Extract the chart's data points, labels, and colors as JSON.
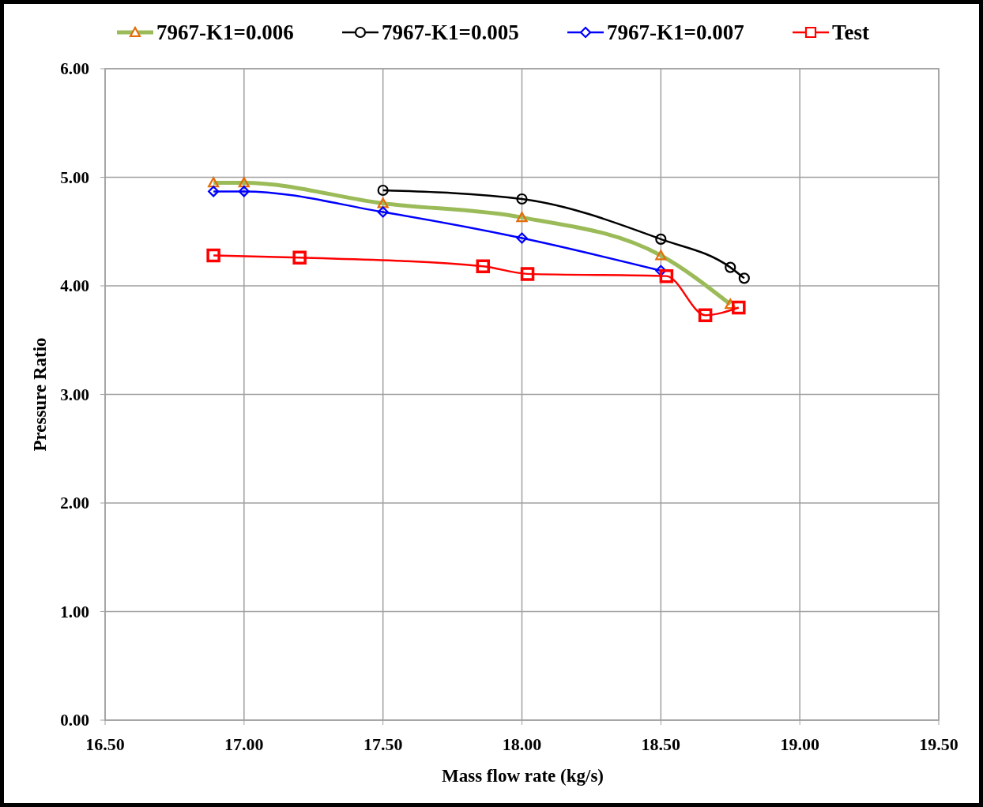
{
  "chart_data": {
    "type": "line",
    "xlabel": "Mass flow rate (kg/s)",
    "ylabel": "Pressure Ratio",
    "xlim": [
      16.5,
      19.5
    ],
    "xticks": [
      {
        "value": 16.5,
        "label": "16.50"
      },
      {
        "value": 17,
        "label": "17.00"
      },
      {
        "value": 17.5,
        "label": "17.50"
      },
      {
        "value": 18,
        "label": "18.00"
      },
      {
        "value": 18.5,
        "label": "18.50"
      },
      {
        "value": 19,
        "label": "19.00"
      },
      {
        "value": 19.5,
        "label": "19.50"
      }
    ],
    "ylim": [
      0,
      6
    ],
    "yticks": [
      {
        "value": 0,
        "label": "0.00"
      },
      {
        "value": 1,
        "label": "1.00"
      },
      {
        "value": 2,
        "label": "2.00"
      },
      {
        "value": 3,
        "label": "3.00"
      },
      {
        "value": 4,
        "label": "4.00"
      },
      {
        "value": 5,
        "label": "5.00"
      },
      {
        "value": 6,
        "label": "6.00"
      }
    ],
    "grid": true,
    "legend": "top",
    "series": [
      {
        "name": "7967-K1=0.006",
        "color": "#9bbb59",
        "marker": "triangle",
        "x": [
          16.89,
          17.0,
          17.5,
          18.0,
          18.5,
          18.75
        ],
        "values": [
          4.95,
          4.95,
          4.76,
          4.63,
          4.28,
          3.83
        ]
      },
      {
        "name": "7967-K1=0.005",
        "color": "#000000",
        "marker": "circle",
        "x": [
          17.5,
          18.0,
          18.5,
          18.75,
          18.8
        ],
        "values": [
          4.88,
          4.8,
          4.43,
          4.17,
          4.07
        ]
      },
      {
        "name": "7967-K1=0.007",
        "color": "#0000ff",
        "marker": "diamond",
        "x": [
          16.89,
          17.0,
          17.5,
          18.0,
          18.5
        ],
        "values": [
          4.87,
          4.87,
          4.68,
          4.44,
          4.14
        ]
      },
      {
        "name": "Test",
        "color": "#ff0000",
        "marker": "square",
        "x": [
          16.89,
          17.2,
          17.86,
          18.02,
          18.52,
          18.66,
          18.78
        ],
        "values": [
          4.28,
          4.26,
          4.18,
          4.11,
          4.09,
          3.73,
          3.8
        ]
      }
    ]
  }
}
